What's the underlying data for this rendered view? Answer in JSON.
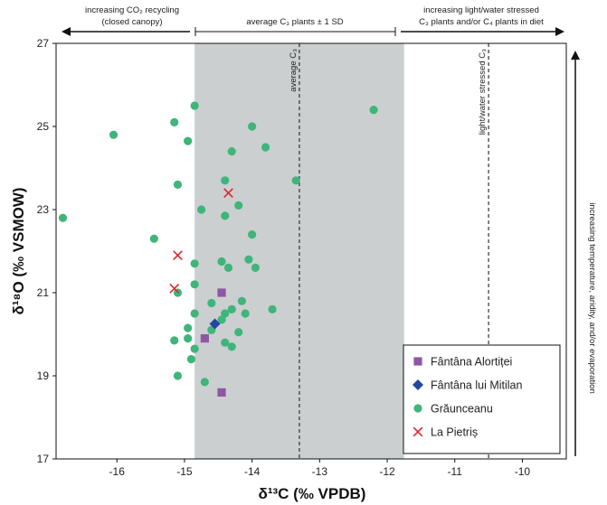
{
  "chart_data": {
    "type": "scatter",
    "xlabel": "δ¹³C (‰ VPDB)",
    "ylabel": "δ¹⁸O (‰ VSMOW)",
    "xlim": [
      -16.9,
      -9.35
    ],
    "ylim": [
      17,
      27
    ],
    "xticks": [
      -16,
      -15,
      -14,
      -13,
      -12,
      -11,
      -10
    ],
    "yticks": [
      17,
      19,
      21,
      23,
      25,
      27
    ],
    "shaded_band": {
      "x_from": -14.85,
      "x_to": -11.75,
      "color": "#cbcfcf"
    },
    "reference_lines": [
      {
        "x": -13.3,
        "label": "average C₃"
      },
      {
        "x": -10.5,
        "label": "light/water stressed C₃"
      }
    ],
    "top_annotations": {
      "left": [
        "increasing CO₂ recycling",
        "(closed canopy)"
      ],
      "middle": [
        "average C₃ plants ± 1 SD"
      ],
      "right": [
        "increasing light/water stressed",
        "C₃ plants and/or C₄ plants in diet"
      ]
    },
    "right_annotation": "increasing temperature, aridity, and/or evaporation",
    "legend_position": "bottom-right",
    "series": [
      {
        "name": "Fântâna Alortiței",
        "marker": "square",
        "color": "#8e57a6",
        "points": [
          [
            -14.45,
            21.0
          ],
          [
            -14.7,
            19.9
          ],
          [
            -14.45,
            18.6
          ]
        ]
      },
      {
        "name": "Fântâna lui Mitilan",
        "marker": "diamond",
        "color": "#2346a4",
        "points": [
          [
            -14.55,
            20.25
          ]
        ]
      },
      {
        "name": "Grăunceanu",
        "marker": "circle",
        "color": "#3fb57a",
        "points": [
          [
            -16.8,
            22.8
          ],
          [
            -16.05,
            24.8
          ],
          [
            -15.45,
            22.3
          ],
          [
            -15.15,
            25.1
          ],
          [
            -15.1,
            23.6
          ],
          [
            -14.85,
            25.5
          ],
          [
            -14.95,
            24.65
          ],
          [
            -14.75,
            23.0
          ],
          [
            -14.4,
            23.7
          ],
          [
            -14.3,
            24.4
          ],
          [
            -14.2,
            23.1
          ],
          [
            -14.4,
            22.85
          ],
          [
            -14.0,
            25.0
          ],
          [
            -13.8,
            24.5
          ],
          [
            -13.35,
            23.7
          ],
          [
            -12.2,
            25.4
          ],
          [
            -15.1,
            21.0
          ],
          [
            -14.85,
            21.7
          ],
          [
            -14.85,
            21.2
          ],
          [
            -14.85,
            20.5
          ],
          [
            -14.45,
            21.75
          ],
          [
            -14.35,
            21.6
          ],
          [
            -14.05,
            21.8
          ],
          [
            -13.95,
            21.6
          ],
          [
            -14.0,
            22.4
          ],
          [
            -14.6,
            20.75
          ],
          [
            -14.3,
            20.6
          ],
          [
            -14.4,
            20.5
          ],
          [
            -14.45,
            20.35
          ],
          [
            -14.15,
            20.8
          ],
          [
            -14.1,
            20.5
          ],
          [
            -13.7,
            20.6
          ],
          [
            -14.95,
            20.15
          ],
          [
            -14.95,
            19.9
          ],
          [
            -15.15,
            19.85
          ],
          [
            -14.85,
            19.65
          ],
          [
            -14.9,
            19.4
          ],
          [
            -14.6,
            20.1
          ],
          [
            -14.4,
            19.8
          ],
          [
            -14.3,
            19.7
          ],
          [
            -14.2,
            20.05
          ],
          [
            -15.1,
            19.0
          ],
          [
            -14.7,
            18.85
          ]
        ]
      },
      {
        "name": "La Pietriș",
        "marker": "x",
        "color": "#e0252c",
        "points": [
          [
            -15.1,
            21.9
          ],
          [
            -15.15,
            21.1
          ],
          [
            -14.35,
            23.4
          ]
        ]
      }
    ]
  }
}
